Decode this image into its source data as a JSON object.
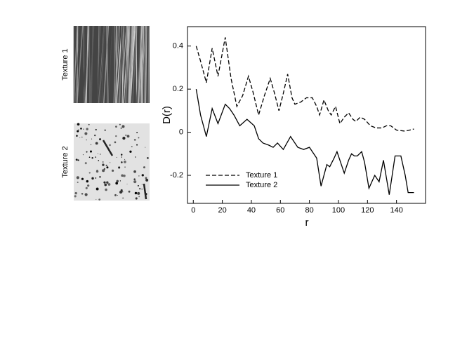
{
  "textures": [
    "Texture 1",
    "Texture 2"
  ],
  "chart_data": {
    "type": "line",
    "xlabel": "r",
    "ylabel": "D(r)",
    "xlim": [
      -4,
      160
    ],
    "ylim": [
      -0.33,
      0.49
    ],
    "xticks": [
      0,
      20,
      40,
      60,
      80,
      100,
      120,
      140
    ],
    "yticks": [
      0.4,
      0.2,
      0,
      -0.2
    ],
    "legend": "lower left",
    "series": [
      {
        "name": "Texture 1",
        "color": "#000000",
        "dash": "dashed",
        "x": [
          2,
          5,
          9,
          13,
          17,
          22,
          26,
          30,
          34,
          38,
          41,
          45,
          49,
          53,
          56,
          59,
          62,
          65,
          68,
          70,
          74,
          78,
          82,
          85,
          87,
          90,
          93,
          95,
          98,
          101,
          104,
          107,
          110,
          112,
          115,
          118,
          122,
          126,
          130,
          133,
          136,
          140,
          146,
          152
        ],
        "values": [
          0.4,
          0.33,
          0.23,
          0.39,
          0.26,
          0.44,
          0.25,
          0.12,
          0.17,
          0.26,
          0.19,
          0.08,
          0.17,
          0.25,
          0.18,
          0.1,
          0.18,
          0.27,
          0.16,
          0.13,
          0.14,
          0.16,
          0.16,
          0.12,
          0.08,
          0.15,
          0.1,
          0.08,
          0.12,
          0.04,
          0.07,
          0.09,
          0.06,
          0.05,
          0.07,
          0.06,
          0.03,
          0.02,
          0.02,
          0.03,
          0.03,
          0.01,
          0.005,
          0.015
        ]
      },
      {
        "name": "Texture 2",
        "color": "#000000",
        "dash": "solid",
        "x": [
          2,
          5,
          9,
          13,
          17,
          22,
          25,
          28,
          32,
          37,
          42,
          45,
          48,
          52,
          55,
          58,
          62,
          67,
          72,
          76,
          80,
          82,
          85,
          88,
          92,
          94,
          97,
          99,
          102,
          104,
          107,
          109,
          111,
          113,
          116,
          118,
          121,
          125,
          128,
          131,
          135,
          139,
          143,
          146,
          148,
          152
        ],
        "values": [
          0.2,
          0.08,
          -0.02,
          0.11,
          0.04,
          0.13,
          0.11,
          0.08,
          0.03,
          0.06,
          0.03,
          -0.03,
          -0.05,
          -0.06,
          -0.07,
          -0.05,
          -0.08,
          -0.02,
          -0.07,
          -0.08,
          -0.07,
          -0.09,
          -0.12,
          -0.25,
          -0.15,
          -0.16,
          -0.12,
          -0.09,
          -0.15,
          -0.19,
          -0.13,
          -0.1,
          -0.11,
          -0.11,
          -0.09,
          -0.14,
          -0.26,
          -0.2,
          -0.23,
          -0.13,
          -0.29,
          -0.11,
          -0.11,
          -0.2,
          -0.28,
          -0.28
        ]
      }
    ]
  }
}
